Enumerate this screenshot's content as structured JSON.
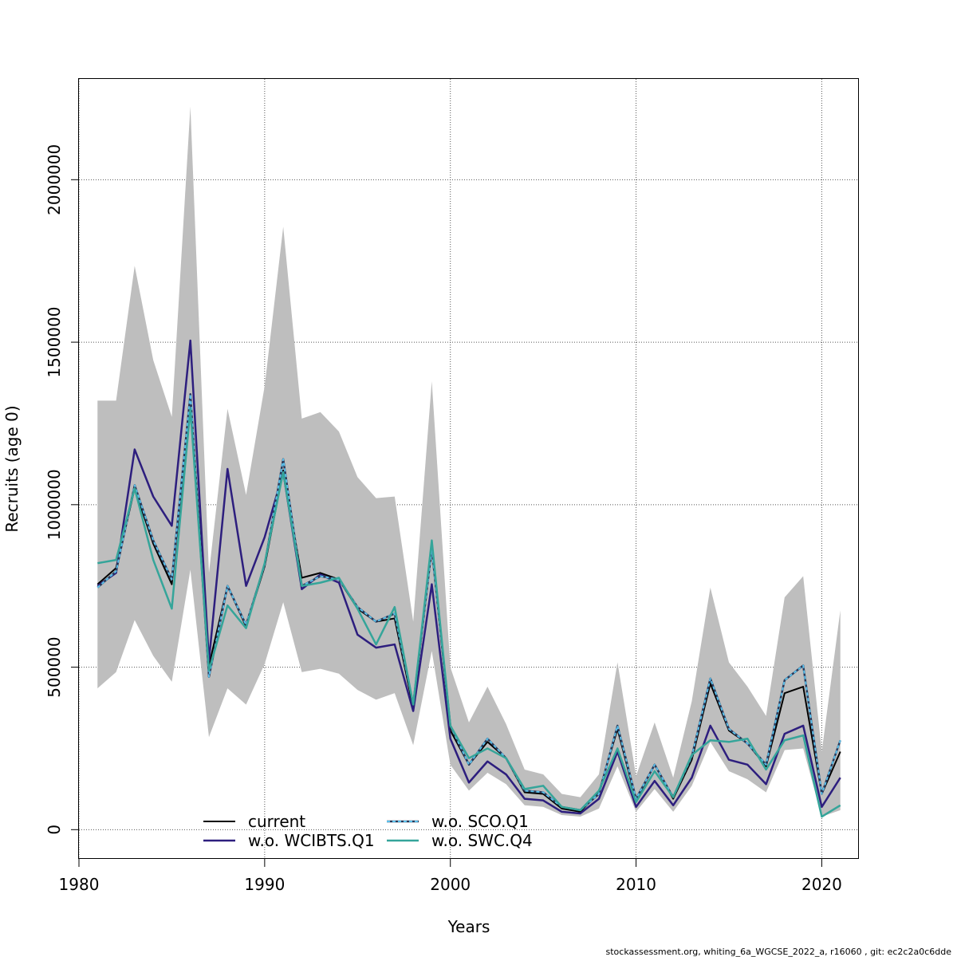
{
  "chart_data": {
    "type": "line",
    "title": "",
    "xlabel": "Years",
    "ylabel": "Recruits (age 0)",
    "xlim": [
      1980,
      2022
    ],
    "ylim": [
      -90000,
      2310000
    ],
    "xticks": [
      1980,
      1990,
      2000,
      2010,
      2020
    ],
    "yticks": [
      0,
      500000,
      1000000,
      1500000,
      2000000
    ],
    "ytick_labels": [
      "0",
      "500000",
      "1000000",
      "1500000",
      "2000000"
    ],
    "grid": true,
    "legend_position": "bottom-center",
    "x": [
      1981,
      1982,
      1983,
      1984,
      1985,
      1986,
      1987,
      1988,
      1989,
      1990,
      1991,
      1992,
      1993,
      1994,
      1995,
      1996,
      1997,
      1998,
      1999,
      2000,
      2001,
      2002,
      2003,
      2004,
      2005,
      2006,
      2007,
      2008,
      2009,
      2010,
      2011,
      2012,
      2013,
      2014,
      2015,
      2016,
      2017,
      2018,
      2019,
      2020,
      2021
    ],
    "band": {
      "color": "#bebebe",
      "upper": [
        1320000,
        1320000,
        1735000,
        1445000,
        1270000,
        2225000,
        790000,
        1295000,
        1030000,
        1365000,
        1855000,
        1265000,
        1285000,
        1225000,
        1085000,
        1020000,
        1025000,
        640000,
        1380000,
        500000,
        330000,
        440000,
        325000,
        185000,
        170000,
        110000,
        100000,
        170000,
        515000,
        165000,
        330000,
        160000,
        395000,
        745000,
        515000,
        440000,
        350000,
        715000,
        780000,
        240000,
        675000
      ],
      "lower": [
        435000,
        485000,
        645000,
        535000,
        455000,
        800000,
        285000,
        435000,
        385000,
        510000,
        700000,
        485000,
        495000,
        480000,
        430000,
        400000,
        420000,
        260000,
        550000,
        200000,
        120000,
        175000,
        140000,
        75000,
        70000,
        45000,
        40000,
        65000,
        195000,
        55000,
        125000,
        55000,
        135000,
        270000,
        180000,
        155000,
        115000,
        245000,
        250000,
        40000,
        60000
      ]
    },
    "series": [
      {
        "name": "current",
        "color": "#000000",
        "dash": "",
        "width": 2,
        "values": [
          755000,
          805000,
          1050000,
          880000,
          755000,
          1335000,
          505000,
          750000,
          625000,
          810000,
          1105000,
          775000,
          790000,
          770000,
          680000,
          640000,
          650000,
          375000,
          875000,
          305000,
          200000,
          270000,
          220000,
          115000,
          110000,
          65000,
          55000,
          115000,
          310000,
          90000,
          200000,
          95000,
          215000,
          450000,
          305000,
          265000,
          195000,
          420000,
          440000,
          110000,
          240000
        ]
      },
      {
        "name": "w.o. WCIBTS.Q1",
        "color": "#2d1e7e",
        "dash": "",
        "width": 2.5,
        "values": [
          750000,
          790000,
          1170000,
          1025000,
          935000,
          1505000,
          520000,
          1110000,
          750000,
          900000,
          1100000,
          740000,
          785000,
          760000,
          600000,
          560000,
          570000,
          365000,
          755000,
          280000,
          145000,
          210000,
          170000,
          95000,
          90000,
          55000,
          50000,
          95000,
          240000,
          70000,
          150000,
          75000,
          160000,
          320000,
          215000,
          200000,
          140000,
          295000,
          320000,
          70000,
          160000
        ]
      },
      {
        "name": "w.o. SCO.Q1",
        "color": "#5bc0eb",
        "dash": "4,3",
        "width": 2,
        "values": [
          745000,
          795000,
          1060000,
          890000,
          770000,
          1340000,
          470000,
          750000,
          630000,
          815000,
          1140000,
          750000,
          780000,
          770000,
          685000,
          640000,
          665000,
          385000,
          865000,
          320000,
          200000,
          280000,
          220000,
          120000,
          115000,
          70000,
          60000,
          110000,
          320000,
          95000,
          200000,
          100000,
          225000,
          465000,
          310000,
          265000,
          200000,
          460000,
          505000,
          110000,
          275000
        ]
      },
      {
        "name": "w.o. SWC.Q4",
        "color": "#35a59a",
        "dash": "",
        "width": 2.5,
        "values": [
          820000,
          830000,
          1050000,
          830000,
          680000,
          1295000,
          490000,
          690000,
          620000,
          820000,
          1100000,
          750000,
          760000,
          775000,
          680000,
          570000,
          685000,
          385000,
          890000,
          320000,
          220000,
          250000,
          220000,
          125000,
          135000,
          70000,
          60000,
          120000,
          250000,
          85000,
          180000,
          100000,
          230000,
          275000,
          270000,
          280000,
          185000,
          275000,
          290000,
          40000,
          75000
        ]
      }
    ]
  },
  "footer_text": "stockassessment.org, whiting_6a_WGCSE_2022_a, r16060 , git: ec2c2a0c6dde"
}
